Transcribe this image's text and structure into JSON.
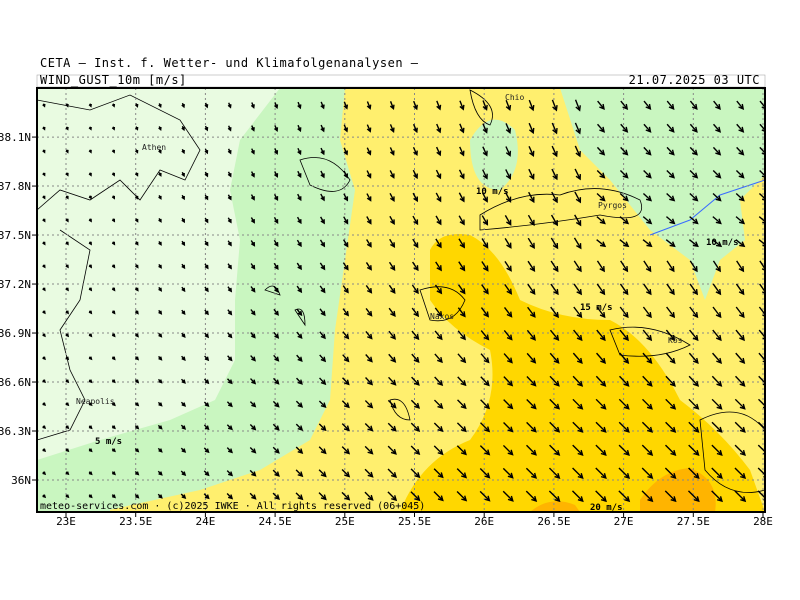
{
  "header": {
    "institute": "CETA – Inst. f. Wetter- und Klimafolgenanalysen –",
    "title": "WIND_GUST_10m [m/s]",
    "date": "21.07.2025 03 UTC"
  },
  "map": {
    "lon_ticks": [
      {
        "value": 23,
        "label": "23E"
      },
      {
        "value": 23.5,
        "label": "23.5E"
      },
      {
        "value": 24,
        "label": "24E"
      },
      {
        "value": 24.5,
        "label": "24.5E"
      },
      {
        "value": 25,
        "label": "25E"
      },
      {
        "value": 25.5,
        "label": "25.5E"
      },
      {
        "value": 26,
        "label": "26E"
      },
      {
        "value": 26.5,
        "label": "26.5E"
      },
      {
        "value": 27,
        "label": "27E"
      },
      {
        "value": 27.5,
        "label": "27.5E"
      },
      {
        "value": 28,
        "label": "28E"
      }
    ],
    "lat_ticks": [
      {
        "value": 38.1,
        "label": "38.1N"
      },
      {
        "value": 37.8,
        "label": "37.8N"
      },
      {
        "value": 37.5,
        "label": "37.5N"
      },
      {
        "value": 37.2,
        "label": "37.2N"
      },
      {
        "value": 36.9,
        "label": "36.9N"
      },
      {
        "value": 36.6,
        "label": "36.6N"
      },
      {
        "value": 36.3,
        "label": "36.3N"
      },
      {
        "value": 36,
        "label": "36N"
      }
    ],
    "places": [
      "Athen",
      "Chio",
      "Pyrgos",
      "Naxos",
      "Kos",
      "Neapolis"
    ],
    "contour_labels": [
      "10 m/s",
      "10 m/s",
      "15 m/s",
      "5 m/s",
      "20 m/s"
    ]
  },
  "footer": "meteo-services.com · (c)2025 IWKE · All rights reserved (06+045)"
}
